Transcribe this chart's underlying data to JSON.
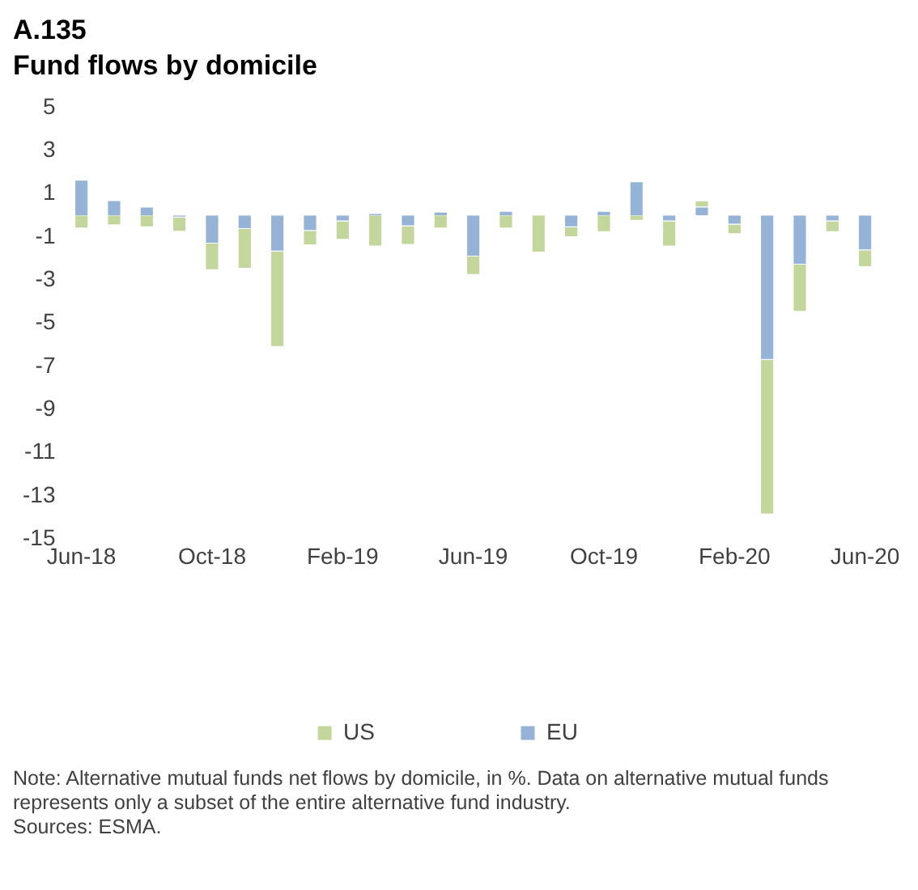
{
  "chart_data": {
    "type": "bar",
    "title": "A.135",
    "subtitle": "Fund flows by domicile",
    "stacked": true,
    "legend": "bottom",
    "grid": false,
    "categories": [
      "Jun-18",
      null,
      null,
      null,
      "Oct-18",
      null,
      null,
      null,
      "Feb-19",
      null,
      null,
      null,
      "Jun-19",
      null,
      null,
      null,
      "Oct-19",
      null,
      null,
      null,
      "Feb-20",
      null,
      null,
      null,
      "Jun-20"
    ],
    "series": [
      {
        "name": "EU",
        "color": "#95b3d7",
        "values": [
          1.65,
          0.7,
          0.4,
          -0.1,
          -1.3,
          -0.63,
          -1.67,
          -0.71,
          -0.27,
          0.1,
          -0.5,
          0.17,
          -1.9,
          0.2,
          null,
          -0.55,
          0.2,
          1.57,
          -0.27,
          0.4,
          -0.42,
          -6.69,
          -2.28,
          -0.27,
          -1.61
        ]
      },
      {
        "name": "US",
        "color": "#c3d69b",
        "values": [
          -0.6,
          -0.45,
          -0.55,
          -0.65,
          -1.23,
          -1.84,
          -4.42,
          -0.67,
          -0.86,
          -1.44,
          -0.86,
          -0.6,
          -0.86,
          -0.6,
          -1.72,
          -0.45,
          -0.77,
          -0.25,
          -1.17,
          0.29,
          -0.44,
          -7.16,
          -2.18,
          -0.5,
          -0.78
        ]
      }
    ],
    "ylim": [
      -15,
      5
    ],
    "yticks": [
      5,
      3,
      1,
      -1,
      -3,
      -5,
      -7,
      -9,
      -11,
      -13,
      -15
    ],
    "annotations": [
      "Note: Alternative mutual funds net flows by domicile, in %. Data on alternative mutual funds represents only a subset of the entire alternative fund industry.",
      "Sources: ESMA."
    ]
  }
}
